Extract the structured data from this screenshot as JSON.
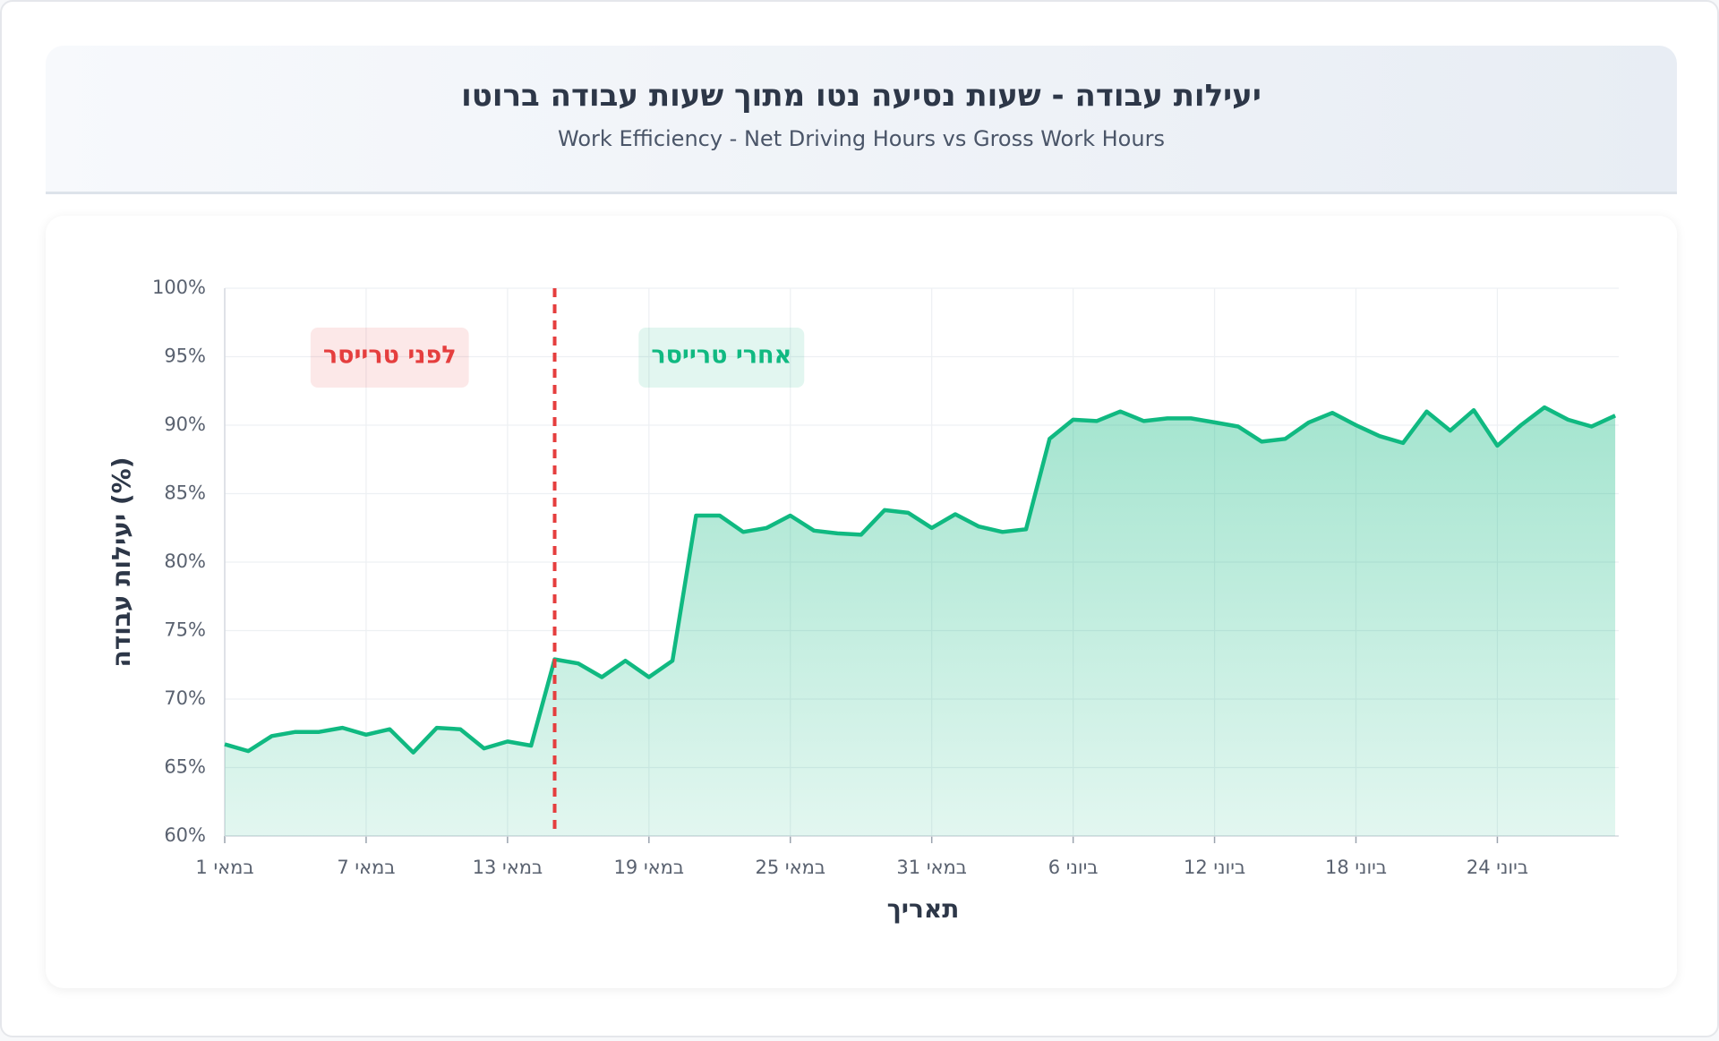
{
  "chart_data": {
    "type": "area",
    "title": "יעילות עבודה - שעות נסיעה נטו מתוך שעות עבודה ברוטו",
    "subtitle": "Work Efficiency - Net Driving Hours vs Gross Work Hours",
    "xlabel": "תאריך",
    "ylabel": "יעילות עבודה (%)",
    "categories": [
      "1 במאי",
      null,
      null,
      null,
      null,
      null,
      "7 במאי",
      null,
      null,
      null,
      null,
      null,
      "13 במאי",
      null,
      null,
      null,
      null,
      null,
      "19 במאי",
      null,
      null,
      null,
      null,
      null,
      "25 במאי",
      null,
      null,
      null,
      null,
      null,
      "31 במאי",
      null,
      null,
      null,
      null,
      null,
      "6 ביוני",
      null,
      null,
      null,
      null,
      null,
      "12 ביוני",
      null,
      null,
      null,
      null,
      null,
      "18 ביוני",
      null,
      null,
      null,
      null,
      null,
      "24 ביוני",
      null,
      null,
      null,
      null,
      null
    ],
    "values": [
      66.7,
      66.2,
      67.3,
      67.6,
      67.6,
      67.9,
      67.4,
      67.8,
      66.1,
      67.9,
      67.8,
      66.4,
      66.9,
      66.6,
      72.9,
      72.6,
      71.6,
      72.8,
      71.6,
      72.8,
      83.4,
      83.4,
      82.2,
      82.5,
      83.4,
      82.3,
      82.1,
      82.0,
      83.8,
      83.6,
      82.5,
      83.5,
      82.6,
      82.2,
      82.4,
      89.0,
      90.4,
      90.3,
      91.0,
      90.3,
      90.5,
      90.5,
      90.2,
      89.9,
      88.8,
      89.0,
      90.2,
      90.9,
      90.0,
      89.2,
      88.7,
      91.0,
      89.6,
      91.1,
      88.5,
      90.0,
      91.3,
      90.4,
      89.9,
      90.7
    ],
    "color": "#10b981",
    "ylim": [
      60,
      100
    ],
    "yticks": [
      {
        "value": 60,
        "label": "60%"
      },
      {
        "value": 65,
        "label": "65%"
      },
      {
        "value": 70,
        "label": "70%"
      },
      {
        "value": 75,
        "label": "75%"
      },
      {
        "value": 80,
        "label": "80%"
      },
      {
        "value": 85,
        "label": "85%"
      },
      {
        "value": 90,
        "label": "90%"
      },
      {
        "value": 95,
        "label": "95%"
      },
      {
        "value": 100,
        "label": "100%"
      }
    ],
    "grid": true,
    "marker_index": 14,
    "marker_color": "#e53e3e",
    "annotations": [
      {
        "text": "לפני טרייסר",
        "color": "#e53e3e"
      },
      {
        "text": "אחרי טרייסר",
        "color": "#10b981"
      }
    ]
  }
}
